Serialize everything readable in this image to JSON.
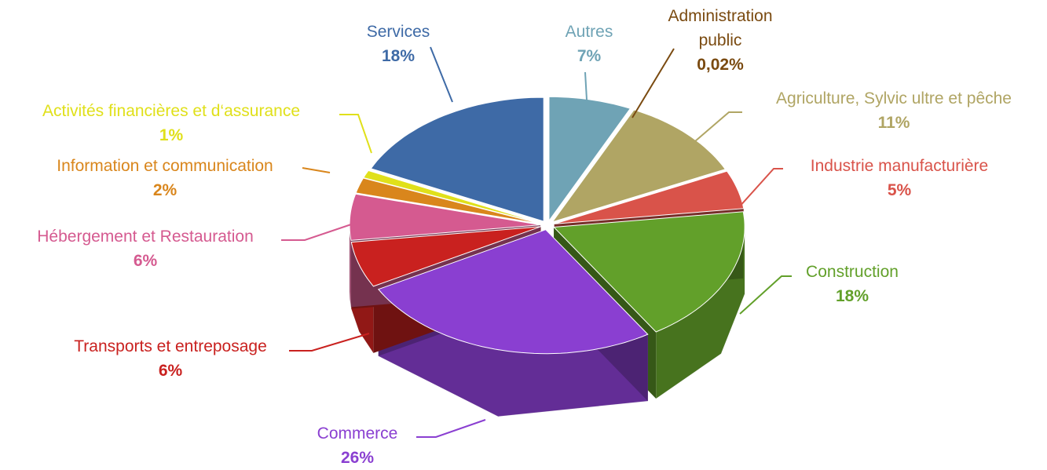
{
  "chart_data": {
    "type": "pie",
    "categories": [
      "Autres",
      "Administration public",
      "Agriculture, Sylvic ultre et pêche",
      "Industrie manufacturière",
      "Construction",
      "Commerce",
      "Transports et entreposage",
      "Hébergement et Restauration",
      "Information et communication",
      "Activités financières et d‘assurance",
      "Services"
    ],
    "values": [
      7,
      0.02,
      11,
      5,
      18,
      26,
      6,
      6,
      2,
      1,
      18
    ],
    "value_labels": [
      "7%",
      "0,02%",
      "11%",
      "5%",
      "18%",
      "26%",
      "6%",
      "6%",
      "2%",
      "1%",
      "18%"
    ],
    "colors": [
      "#6fa3b5",
      "#7a4a10",
      "#b0a564",
      "#d9534a",
      "#62a02a",
      "#8a3fd1",
      "#c9211f",
      "#d55a90",
      "#d9861c",
      "#e0e01a",
      "#3e6aa6"
    ]
  }
}
